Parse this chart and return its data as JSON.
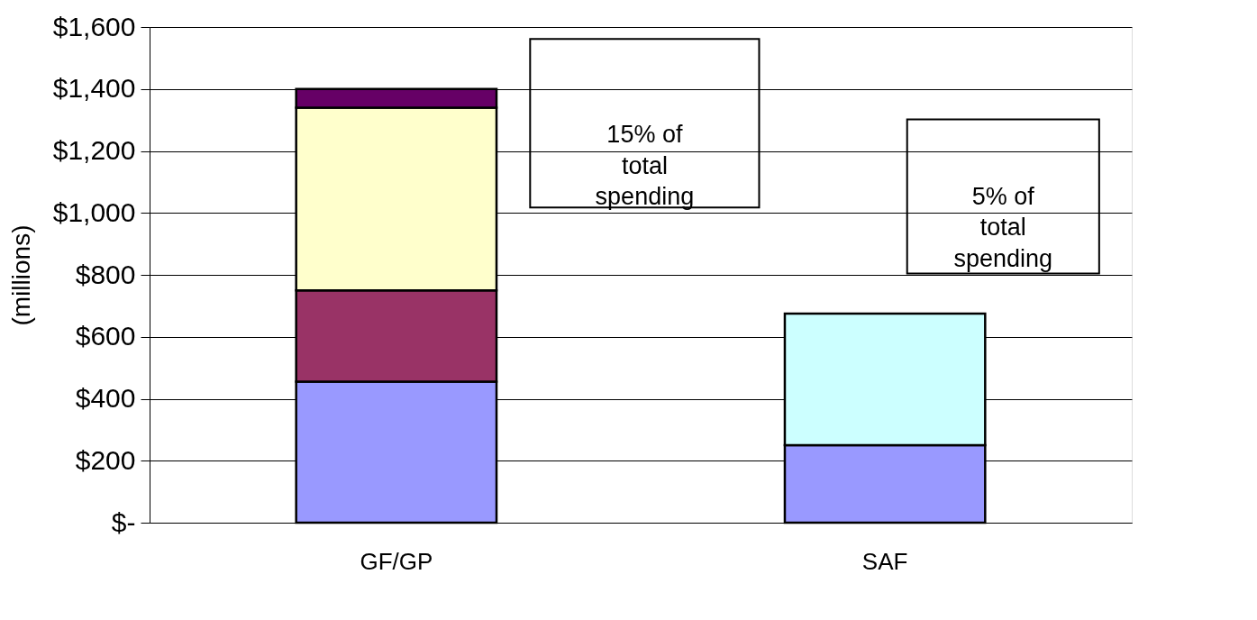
{
  "chart_data": {
    "type": "bar",
    "stacked": true,
    "ylabel": "(millions)",
    "categories": [
      "GF/GP",
      "SAF"
    ],
    "series": [
      {
        "color": "#9999ff",
        "values": [
          455,
          250
        ]
      },
      {
        "color": "#993366",
        "values": [
          295,
          null
        ]
      },
      {
        "color": "#ffffcc",
        "values": [
          590,
          null
        ]
      },
      {
        "color": "#660066",
        "values": [
          60,
          null
        ]
      },
      {
        "color": "#ccffff",
        "values": [
          null,
          425
        ]
      }
    ],
    "ylim": [
      0,
      1600
    ],
    "yticks": [
      {
        "value": 0,
        "label": "$-"
      },
      {
        "value": 200,
        "label": "$200"
      },
      {
        "value": 400,
        "label": "$400"
      },
      {
        "value": 600,
        "label": "$600"
      },
      {
        "value": 800,
        "label": "$800"
      },
      {
        "value": 1000,
        "label": "$1,000"
      },
      {
        "value": 1200,
        "label": "$1,200"
      },
      {
        "value": 1400,
        "label": "$1,400"
      },
      {
        "value": 1600,
        "label": "$1,600"
      }
    ],
    "grid": "y",
    "legend": false,
    "annotations": [
      "15% of\ntotal\nspending",
      "5% of\ntotal\nspending"
    ]
  }
}
